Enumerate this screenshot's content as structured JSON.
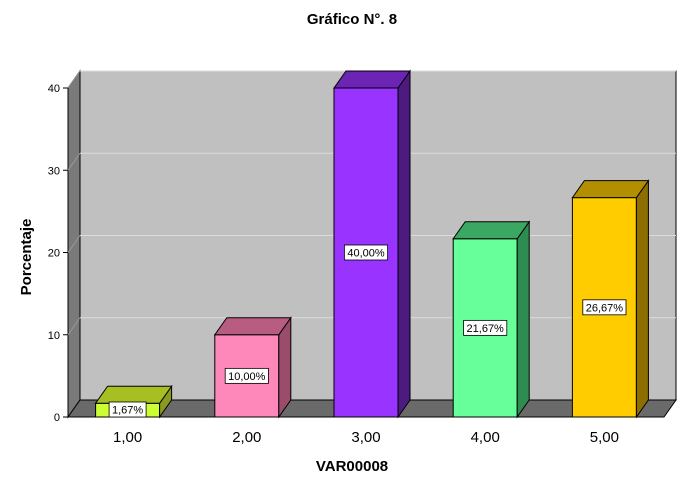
{
  "chart_data": {
    "type": "bar",
    "title": "Gráfico N°. 8",
    "xlabel": "VAR00008",
    "ylabel": "Porcentaje",
    "categories": [
      "1,00",
      "2,00",
      "3,00",
      "4,00",
      "5,00"
    ],
    "values": [
      1.67,
      10.0,
      40.0,
      21.67,
      26.67
    ],
    "data_labels": [
      "1,67%",
      "10,00%",
      "40,00%",
      "21,67%",
      "26,67%"
    ],
    "yticks": [
      "0",
      "10",
      "20",
      "30",
      "40"
    ],
    "ytick_values": [
      0,
      10,
      20,
      30,
      40
    ],
    "ylim": [
      0,
      40
    ],
    "grid": true,
    "bar_colors": [
      {
        "front": "#ccff33",
        "side": "#8a9a1c",
        "top": "#a8bf22"
      },
      {
        "front": "#ff88bb",
        "side": "#9a4d6b",
        "top": "#b85c82"
      },
      {
        "front": "#9933ff",
        "side": "#4d1a80",
        "top": "#6b24b3"
      },
      {
        "front": "#66ff99",
        "side": "#2e8c52",
        "top": "#3aa863"
      },
      {
        "front": "#ffcc00",
        "side": "#8c6f00",
        "top": "#b38f00"
      }
    ],
    "plot_colors": {
      "back": "#c0c0c0",
      "left_wall": "#7a7a7a",
      "floor": "#6a6a6a",
      "grid": "#dcdcdc"
    }
  }
}
